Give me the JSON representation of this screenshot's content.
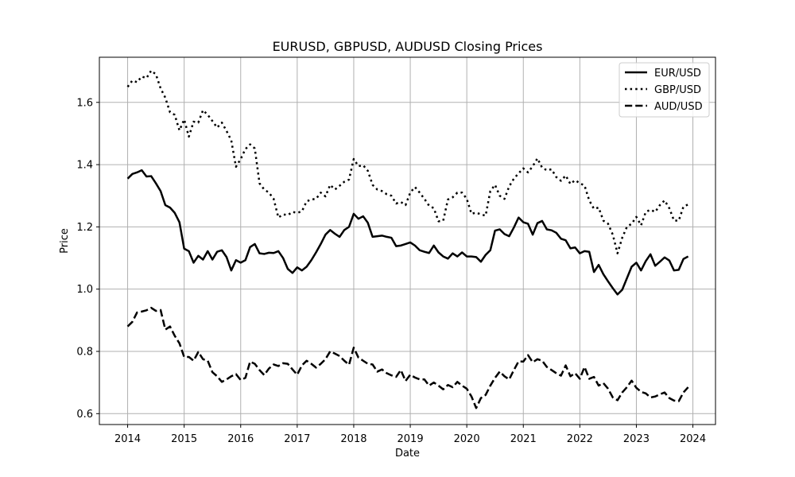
{
  "chart_data": {
    "type": "line",
    "title": "EURUSD, GBPUSD, AUDUSD Closing Prices",
    "xlabel": "Date",
    "ylabel": "Price",
    "xlim": [
      2013.5,
      2024.4
    ],
    "ylim": [
      0.565,
      1.745
    ],
    "x_ticks": [
      "2014",
      "2015",
      "2016",
      "2017",
      "2018",
      "2019",
      "2020",
      "2021",
      "2022",
      "2023",
      "2024"
    ],
    "y_ticks": [
      "0.6",
      "0.8",
      "1.0",
      "1.2",
      "1.4",
      "1.6"
    ],
    "grid": true,
    "legend_position": "top-right",
    "x_start": 2014.0,
    "x_step": 0.08333,
    "series": [
      {
        "name": "EUR/USD",
        "style": "solid",
        "values": [
          1.355,
          1.37,
          1.375,
          1.382,
          1.362,
          1.363,
          1.34,
          1.315,
          1.27,
          1.262,
          1.245,
          1.215,
          1.13,
          1.122,
          1.085,
          1.107,
          1.095,
          1.122,
          1.095,
          1.12,
          1.125,
          1.103,
          1.06,
          1.093,
          1.085,
          1.093,
          1.135,
          1.145,
          1.115,
          1.113,
          1.117,
          1.116,
          1.122,
          1.1,
          1.065,
          1.052,
          1.07,
          1.06,
          1.072,
          1.093,
          1.118,
          1.145,
          1.175,
          1.19,
          1.178,
          1.168,
          1.19,
          1.2,
          1.242,
          1.226,
          1.234,
          1.213,
          1.168,
          1.17,
          1.172,
          1.168,
          1.165,
          1.138,
          1.14,
          1.145,
          1.15,
          1.14,
          1.125,
          1.12,
          1.116,
          1.14,
          1.118,
          1.105,
          1.098,
          1.115,
          1.105,
          1.118,
          1.105,
          1.105,
          1.103,
          1.088,
          1.11,
          1.125,
          1.188,
          1.192,
          1.177,
          1.17,
          1.198,
          1.23,
          1.215,
          1.21,
          1.175,
          1.212,
          1.219,
          1.192,
          1.189,
          1.181,
          1.162,
          1.157,
          1.131,
          1.134,
          1.115,
          1.122,
          1.12,
          1.055,
          1.078,
          1.048,
          1.025,
          1.003,
          0.983,
          0.998,
          1.035,
          1.072,
          1.085,
          1.06,
          1.09,
          1.112,
          1.075,
          1.088,
          1.102,
          1.092,
          1.06,
          1.062,
          1.097,
          1.105
        ]
      },
      {
        "name": "GBP/USD",
        "style": "dotted",
        "values": [
          1.65,
          1.67,
          1.665,
          1.683,
          1.678,
          1.702,
          1.69,
          1.645,
          1.615,
          1.568,
          1.56,
          1.51,
          1.545,
          1.49,
          1.538,
          1.535,
          1.575,
          1.56,
          1.54,
          1.519,
          1.535,
          1.508,
          1.478,
          1.393,
          1.418,
          1.45,
          1.465,
          1.452,
          1.34,
          1.32,
          1.31,
          1.29,
          1.23,
          1.24,
          1.238,
          1.248,
          1.245,
          1.25,
          1.282,
          1.288,
          1.29,
          1.31,
          1.298,
          1.335,
          1.32,
          1.332,
          1.345,
          1.352,
          1.418,
          1.395,
          1.398,
          1.38,
          1.335,
          1.32,
          1.315,
          1.305,
          1.3,
          1.275,
          1.28,
          1.27,
          1.31,
          1.328,
          1.31,
          1.29,
          1.268,
          1.26,
          1.218,
          1.22,
          1.288,
          1.295,
          1.31,
          1.31,
          1.29,
          1.242,
          1.246,
          1.24,
          1.236,
          1.315,
          1.335,
          1.3,
          1.29,
          1.33,
          1.355,
          1.372,
          1.388,
          1.375,
          1.395,
          1.42,
          1.39,
          1.382,
          1.385,
          1.36,
          1.348,
          1.365,
          1.338,
          1.35,
          1.34,
          1.333,
          1.285,
          1.258,
          1.262,
          1.22,
          1.21,
          1.175,
          1.115,
          1.165,
          1.2,
          1.21,
          1.232,
          1.205,
          1.248,
          1.255,
          1.248,
          1.27,
          1.285,
          1.26,
          1.22,
          1.22,
          1.265,
          1.272
        ]
      },
      {
        "name": "AUD/USD",
        "style": "dashed",
        "values": [
          0.88,
          0.895,
          0.925,
          0.928,
          0.932,
          0.94,
          0.93,
          0.933,
          0.87,
          0.88,
          0.85,
          0.826,
          0.782,
          0.782,
          0.77,
          0.798,
          0.775,
          0.77,
          0.733,
          0.72,
          0.702,
          0.71,
          0.72,
          0.727,
          0.708,
          0.715,
          0.767,
          0.76,
          0.74,
          0.724,
          0.745,
          0.758,
          0.753,
          0.762,
          0.76,
          0.742,
          0.725,
          0.755,
          0.77,
          0.76,
          0.748,
          0.76,
          0.775,
          0.8,
          0.793,
          0.785,
          0.77,
          0.757,
          0.812,
          0.78,
          0.77,
          0.76,
          0.758,
          0.735,
          0.742,
          0.73,
          0.723,
          0.718,
          0.74,
          0.705,
          0.725,
          0.716,
          0.71,
          0.71,
          0.69,
          0.7,
          0.69,
          0.678,
          0.692,
          0.685,
          0.702,
          0.69,
          0.68,
          0.655,
          0.618,
          0.65,
          0.66,
          0.69,
          0.715,
          0.735,
          0.72,
          0.71,
          0.74,
          0.768,
          0.767,
          0.788,
          0.765,
          0.775,
          0.77,
          0.75,
          0.74,
          0.73,
          0.722,
          0.755,
          0.72,
          0.73,
          0.712,
          0.75,
          0.712,
          0.718,
          0.69,
          0.698,
          0.68,
          0.652,
          0.643,
          0.668,
          0.685,
          0.706,
          0.683,
          0.67,
          0.665,
          0.652,
          0.655,
          0.662,
          0.668,
          0.65,
          0.642,
          0.64,
          0.668,
          0.685
        ]
      }
    ]
  }
}
